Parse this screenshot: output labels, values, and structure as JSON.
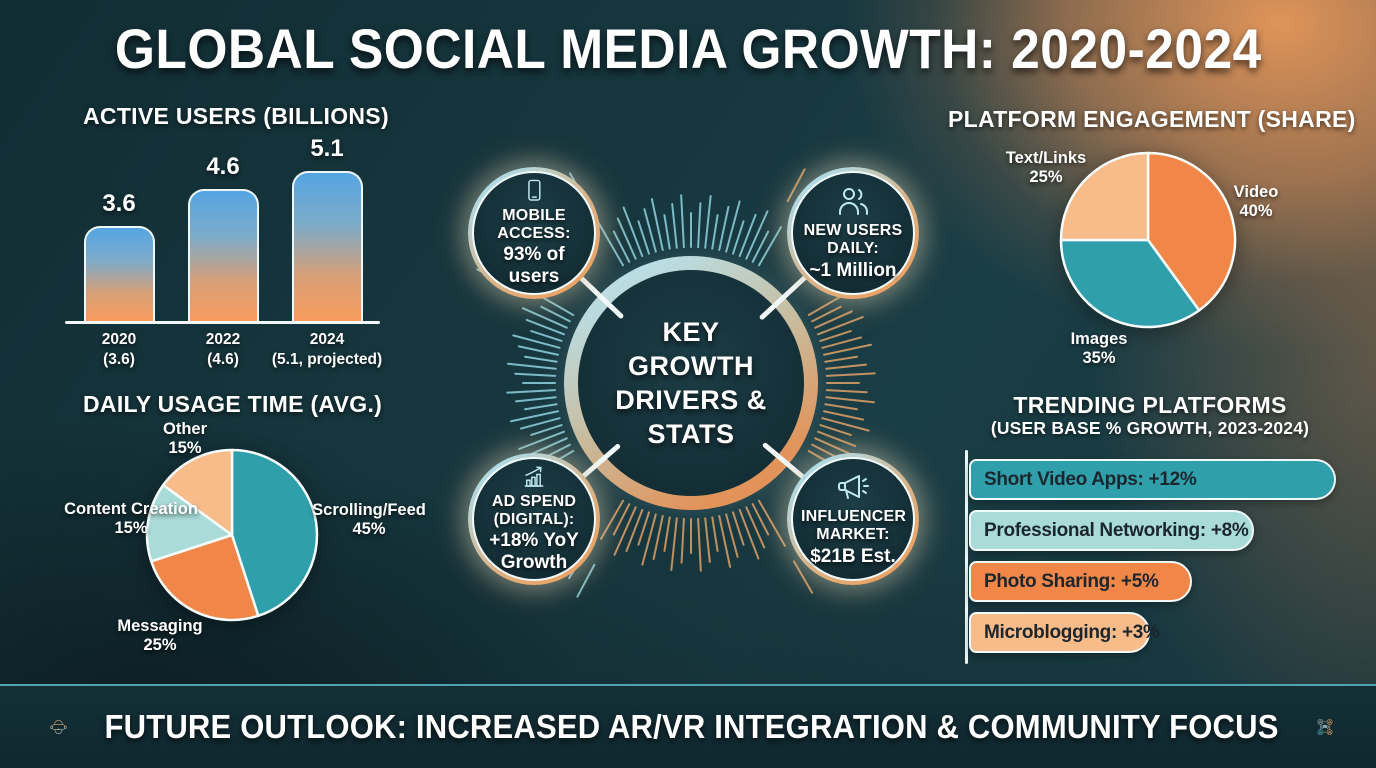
{
  "title": "GLOBAL SOCIAL MEDIA GROWTH: 2020-2024",
  "palette": {
    "teal": "#2f9fab",
    "teal_light": "#a9dcd9",
    "orange": "#f08748",
    "peach": "#f8bb8a",
    "background_dark": "#15333a",
    "background_orange_glow": "#e0915a",
    "ray_teal": "#8ed2de",
    "ray_orange": "#dfa066",
    "bar_gradient_top": "#55a5e2",
    "bar_gradient_bottom": "#f99c5e"
  },
  "chart_data": [
    {
      "type": "bar",
      "title": "ACTIVE USERS (BILLIONS)",
      "categories": [
        "2020",
        "2022",
        "2024"
      ],
      "values": [
        3.6,
        4.6,
        5.1
      ],
      "value_labels": [
        "3.6",
        "4.6",
        "5.1"
      ],
      "tick_labels": [
        [
          "2020",
          "(3.6)"
        ],
        [
          "2022",
          "(4.6)"
        ],
        [
          "2024",
          "(5.1, projected)"
        ]
      ],
      "xlabel": "",
      "ylabel": "Active users (billions)",
      "legend": "none",
      "grid": false
    },
    {
      "type": "pie",
      "title": "DAILY USAGE TIME (AVG.)",
      "start_angle_deg": 0,
      "direction": "clockwise",
      "slices": [
        {
          "label": "Scrolling/Feed",
          "value": 45,
          "color": "#2f9fab"
        },
        {
          "label": "Messaging",
          "value": 25,
          "color": "#f08748"
        },
        {
          "label": "Content Creation",
          "value": 15,
          "color": "#a9dcd9"
        },
        {
          "label": "Other",
          "value": 15,
          "color": "#f8bb8a"
        }
      ]
    },
    {
      "type": "pie",
      "title": "PLATFORM ENGAGEMENT (SHARE)",
      "start_angle_deg": 0,
      "direction": "clockwise",
      "slices": [
        {
          "label": "Video",
          "value": 40,
          "color": "#f08748"
        },
        {
          "label": "Images",
          "value": 35,
          "color": "#2f9fab"
        },
        {
          "label": "Text/Links",
          "value": 25,
          "color": "#f8bb8a"
        }
      ]
    },
    {
      "type": "bar_horizontal",
      "title": "TRENDING PLATFORMS",
      "subtitle": "(USER BASE % GROWTH, 2023-2024)",
      "items": [
        {
          "label": "Short Video Apps: +12%",
          "name": "Short Video Apps",
          "value": 12,
          "color": "#2f9fab"
        },
        {
          "label": "Professional Networking: +8%",
          "name": "Professional Networking",
          "value": 8,
          "color": "#a9dcd9"
        },
        {
          "label": "Photo Sharing: +5%",
          "name": "Photo Sharing",
          "value": 5,
          "color": "#f08748"
        },
        {
          "label": "Microblogging: +3%",
          "name": "Microblogging",
          "value": 3,
          "color": "#f8bb8a"
        }
      ]
    }
  ],
  "center_motif": {
    "heading_lines": [
      "KEY",
      "GROWTH",
      "DRIVERS &",
      "STATS"
    ],
    "satellites": [
      {
        "id": "mobile-access",
        "icon": "smartphone-icon",
        "label": "MOBILE ACCESS:",
        "value": "93% of users"
      },
      {
        "id": "new-users",
        "icon": "users-icon",
        "label": "NEW USERS DAILY:",
        "value": "~1 Million"
      },
      {
        "id": "ad-spend",
        "icon": "chart-growth-icon",
        "label": "AD SPEND (DIGITAL):",
        "value": "+18% YoY Growth"
      },
      {
        "id": "influencer-market",
        "icon": "megaphone-icon",
        "label": "INFLUENCER MARKET:",
        "value": "$21B Est."
      }
    ]
  },
  "footer": {
    "text": "FUTURE OUTLOOK: INCREASED AR/VR INTEGRATION & COMMUNITY FOCUS",
    "left_icon": "vr-headset-icon",
    "right_icon": "community-icon"
  }
}
